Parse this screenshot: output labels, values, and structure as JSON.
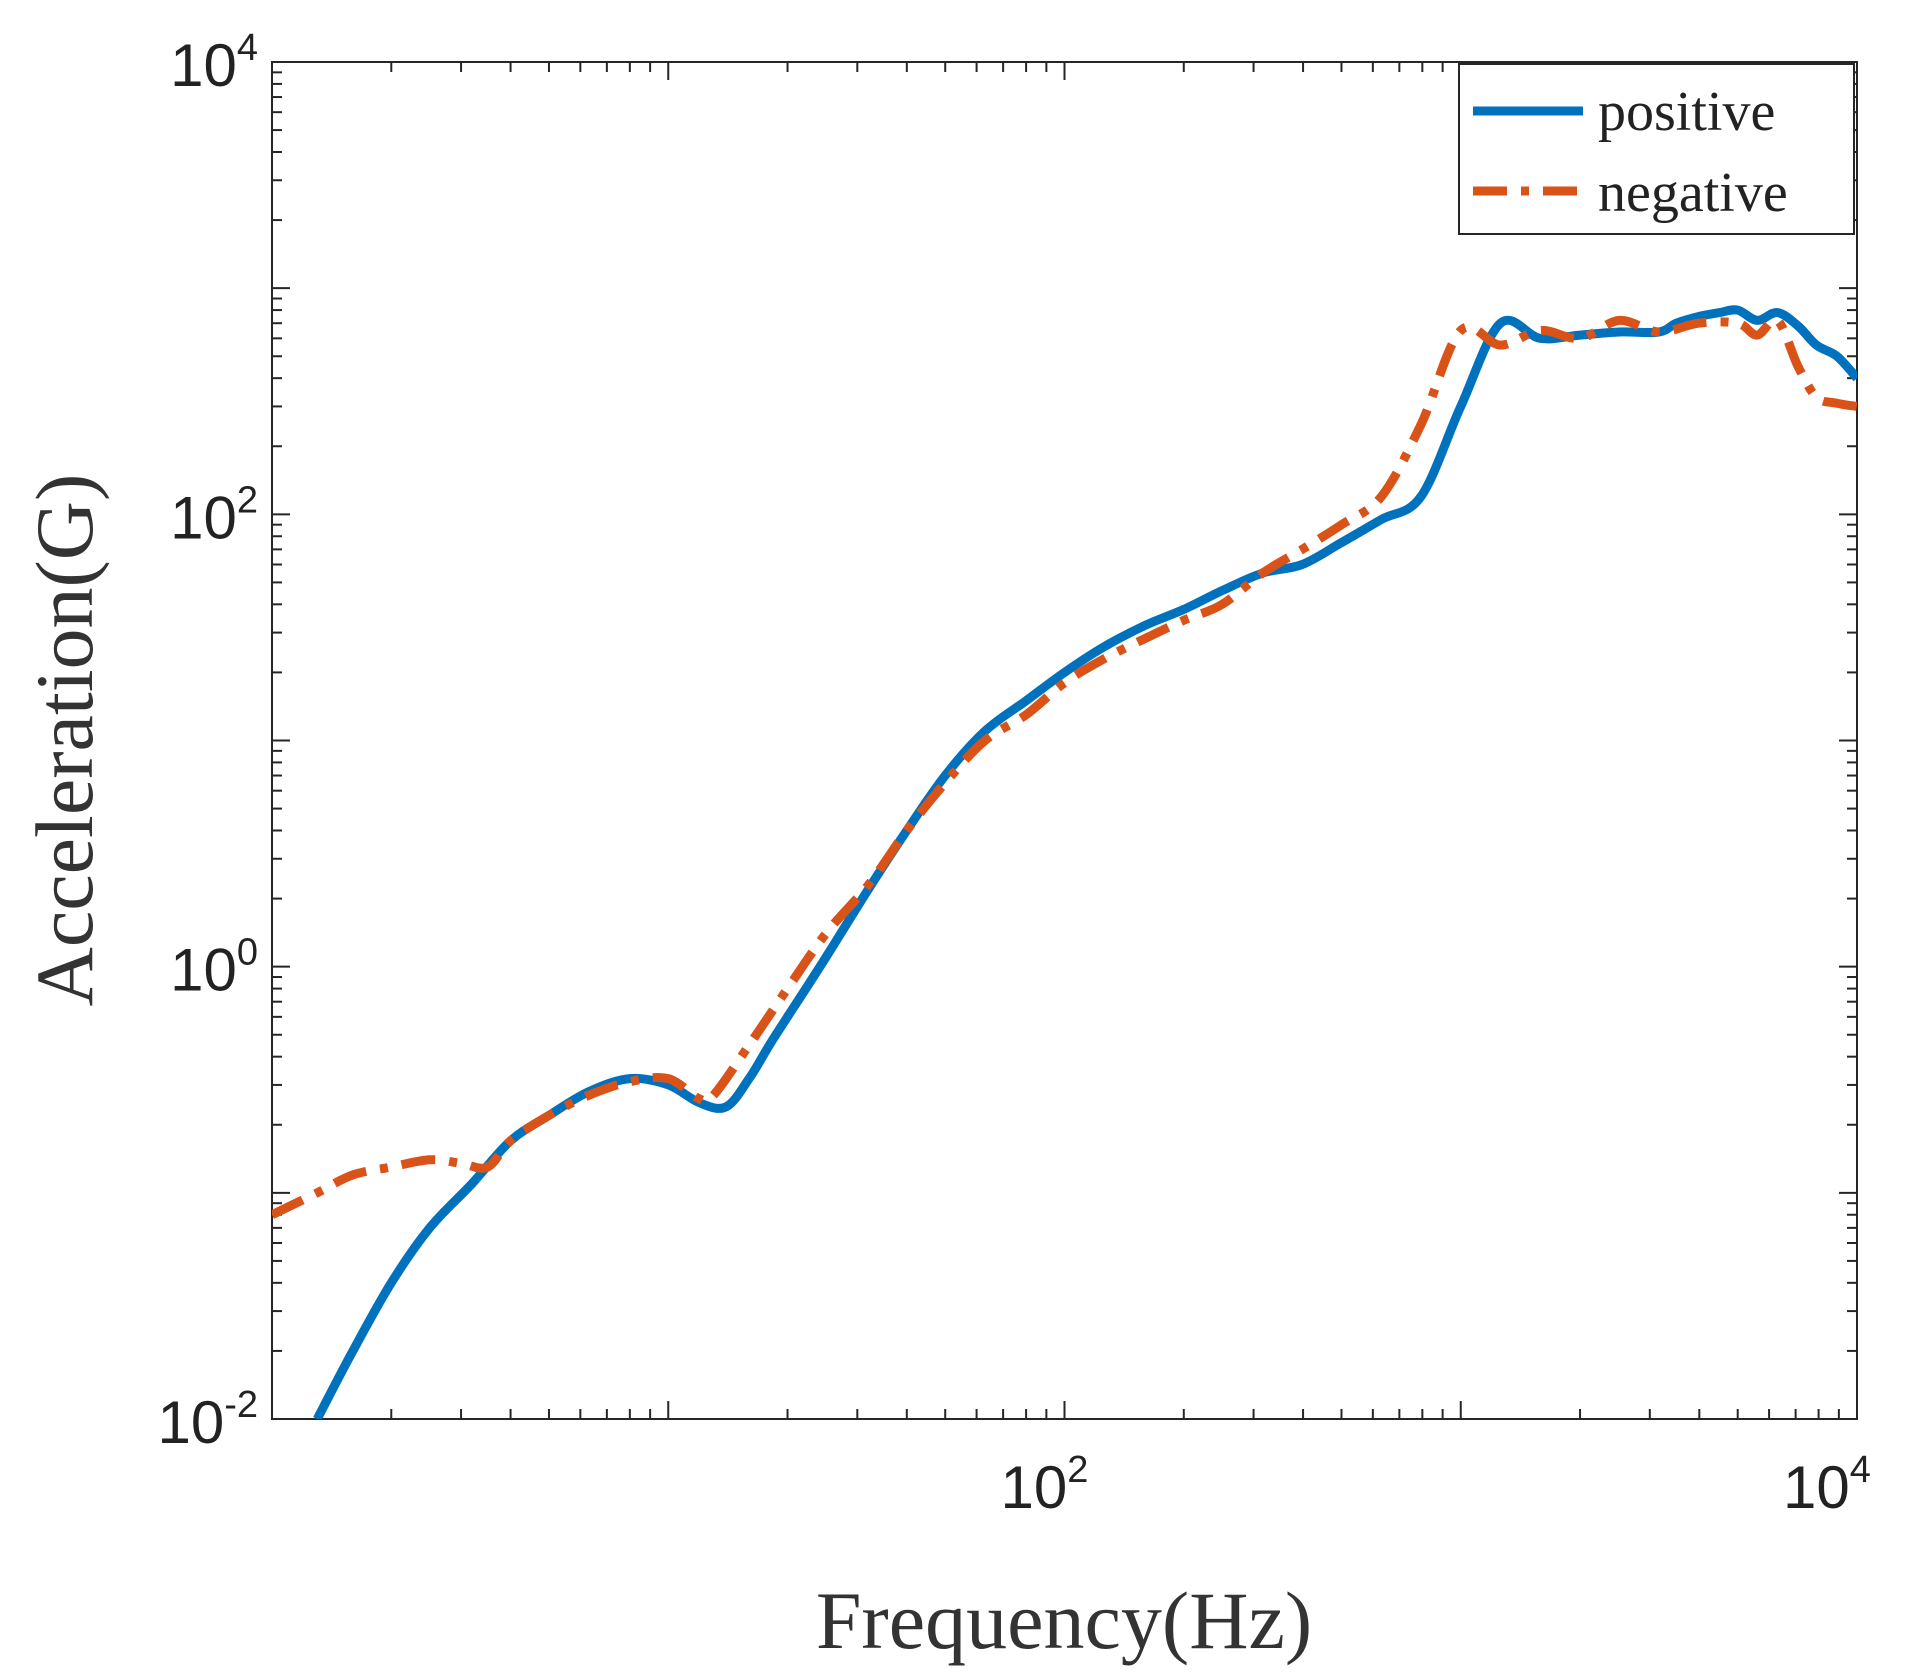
{
  "chart_data": {
    "type": "line",
    "xscale": "log",
    "yscale": "log",
    "xlabel": "Frequency(Hz)",
    "ylabel": "Acceleration(G)",
    "xlim": [
      1,
      10000
    ],
    "ylim": [
      0.01,
      10000
    ],
    "xticks": [
      {
        "value": 100,
        "base": "10",
        "exp": "2"
      },
      {
        "value": 10000,
        "base": "10",
        "exp": "4"
      }
    ],
    "yticks": [
      {
        "value": 0.01,
        "base": "10",
        "exp": "-2"
      },
      {
        "value": 1,
        "base": "10",
        "exp": "0"
      },
      {
        "value": 100,
        "base": "10",
        "exp": "2"
      },
      {
        "value": 10000,
        "base": "10",
        "exp": "4"
      }
    ],
    "legend": {
      "position": "top-right"
    },
    "series": [
      {
        "name": "positive",
        "color": "#0072BD",
        "style": "solid",
        "x": [
          1.3,
          1.6,
          2.0,
          2.5,
          3.2,
          4.0,
          5.0,
          6.3,
          8.0,
          10,
          12,
          14,
          16,
          18,
          20,
          25,
          32,
          40,
          50,
          63,
          80,
          100,
          126,
          158,
          200,
          250,
          316,
          398,
          500,
          631,
          794,
          1000,
          1260,
          1585,
          2000,
          2512,
          3162,
          3500,
          4000,
          4500,
          5000,
          5600,
          6300,
          7100,
          7900,
          8900,
          10000
        ],
        "y": [
          0.01,
          0.02,
          0.04,
          0.07,
          0.11,
          0.17,
          0.22,
          0.28,
          0.32,
          0.3,
          0.25,
          0.24,
          0.32,
          0.45,
          0.6,
          1.1,
          2.2,
          4.0,
          7.0,
          11,
          15,
          20,
          26,
          32,
          38,
          46,
          55,
          60,
          75,
          95,
          120,
          300,
          700,
          600,
          620,
          640,
          640,
          700,
          750,
          780,
          800,
          720,
          780,
          680,
          560,
          500,
          400
        ]
      },
      {
        "name": "negative",
        "color": "#D95319",
        "style": "dashdot",
        "x": [
          1.0,
          1.3,
          1.6,
          2.0,
          2.5,
          3.0,
          3.5,
          4.0,
          5.0,
          6.3,
          8.0,
          10,
          12,
          13,
          16,
          20,
          25,
          32,
          40,
          50,
          63,
          80,
          100,
          126,
          158,
          200,
          250,
          316,
          398,
          500,
          631,
          794,
          1000,
          1260,
          1585,
          2000,
          2512,
          3162,
          3981,
          5000,
          5600,
          6300,
          7100,
          7900,
          8900,
          10000
        ],
        "y": [
          0.08,
          0.1,
          0.12,
          0.13,
          0.14,
          0.135,
          0.13,
          0.17,
          0.22,
          0.27,
          0.31,
          0.32,
          0.26,
          0.27,
          0.45,
          0.8,
          1.4,
          2.3,
          4.0,
          6.5,
          10,
          13,
          18,
          23,
          28,
          34,
          40,
          55,
          70,
          90,
          120,
          250,
          650,
          560,
          650,
          600,
          720,
          640,
          700,
          700,
          620,
          720,
          450,
          330,
          310,
          300
        ]
      }
    ]
  }
}
